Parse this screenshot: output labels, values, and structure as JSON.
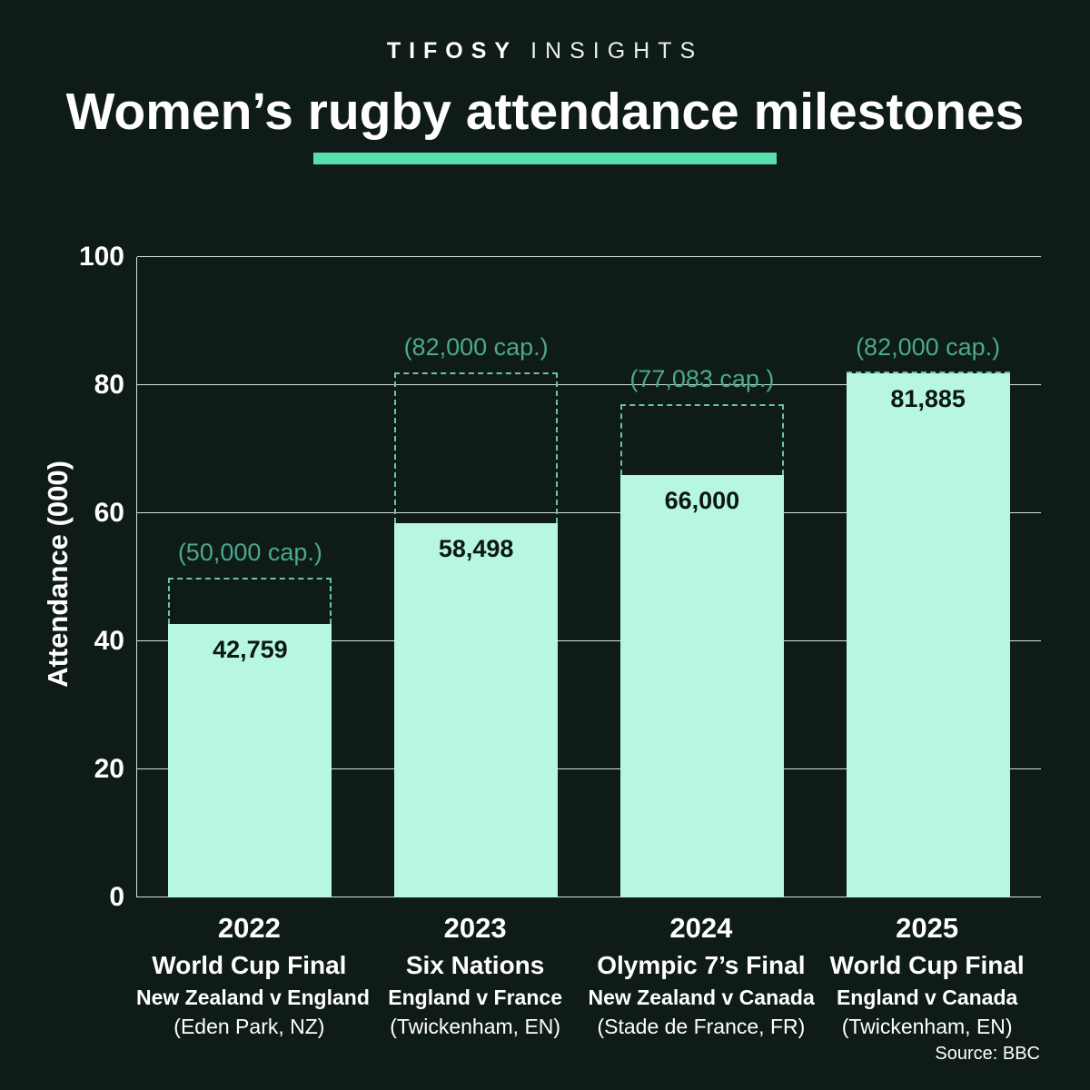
{
  "header": {
    "brand_primary": "TIFOSY",
    "brand_secondary": "INSIGHTS",
    "title": "Women’s rugby attendance milestones"
  },
  "colors": {
    "background": "#0f1b19",
    "bar": "#b6f6e2",
    "accent": "#57dfae",
    "capacity_text": "#4ba98c",
    "capacity_dash": "#6ec2a5",
    "grid": "#d7e1de",
    "value_text": "#0d1716"
  },
  "chart_data": {
    "type": "bar",
    "title": "Women’s rugby attendance milestones",
    "xlabel": "",
    "ylabel": "Attendance (000)",
    "ylim": [
      0,
      100
    ],
    "yticks": [
      0,
      20,
      40,
      60,
      80,
      100
    ],
    "grid": true,
    "legend_position": "none",
    "categories": [
      {
        "year": "2022",
        "event": "World Cup Final",
        "match": "New Zealand v England",
        "venue": "(Eden Park, NZ)"
      },
      {
        "year": "2023",
        "event": "Six Nations",
        "match": "England v France",
        "venue": "(Twickenham, EN)"
      },
      {
        "year": "2024",
        "event": "Olympic 7’s Final",
        "match": "New Zealand v Canada",
        "venue": "(Stade de France, FR)"
      },
      {
        "year": "2025",
        "event": "World Cup Final",
        "match": "England v Canada",
        "venue": "(Twickenham, EN)"
      }
    ],
    "series": [
      {
        "name": "Attendance (000)",
        "values": [
          42.759,
          58.498,
          66.0,
          81.885
        ],
        "labels": [
          "42,759",
          "58,498",
          "66,000",
          "81,885"
        ]
      },
      {
        "name": "Stadium capacity (000)",
        "values": [
          50.0,
          82.0,
          77.083,
          82.0
        ],
        "labels": [
          "(50,000 cap.)",
          "(82,000 cap.)",
          "(77,083 cap.)",
          "(82,000 cap.)"
        ]
      }
    ]
  },
  "footer": {
    "source": "Source: BBC"
  }
}
